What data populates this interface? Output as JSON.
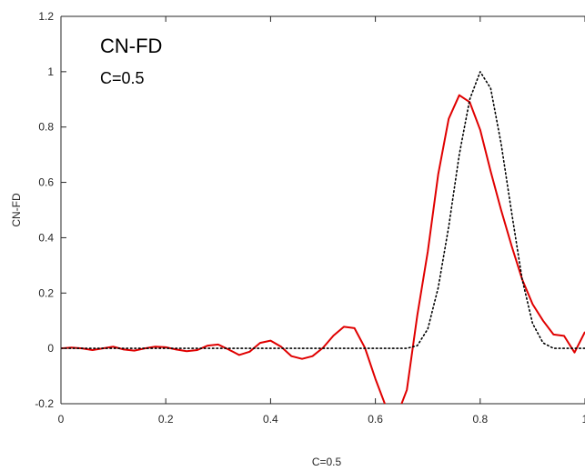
{
  "chart_data": {
    "type": "line",
    "title": "",
    "xlabel": "C=0.5",
    "ylabel": "CN-FD",
    "xlim": [
      0,
      1
    ],
    "ylim": [
      -0.2,
      1.2
    ],
    "xticks": [
      0,
      0.2,
      0.4,
      0.6,
      0.8,
      1
    ],
    "xtick_labels": [
      "0",
      "0.2",
      "0.4",
      "0.6",
      "0.8",
      "1"
    ],
    "yticks": [
      -0.2,
      0,
      0.2,
      0.4,
      0.6,
      0.8,
      1,
      1.2
    ],
    "ytick_labels": [
      "-0.2",
      "0",
      "0.2",
      "0.4",
      "0.6",
      "0.8",
      "1",
      "1.2"
    ],
    "grid": false,
    "annotations": [
      "CN-FD",
      "C=0.5"
    ],
    "series": [
      {
        "style": "solid",
        "color": "#e00000",
        "x": [
          0,
          0.02,
          0.04,
          0.06,
          0.08,
          0.1,
          0.12,
          0.14,
          0.16,
          0.18,
          0.2,
          0.22,
          0.24,
          0.26,
          0.28,
          0.3,
          0.32,
          0.34,
          0.36,
          0.38,
          0.4,
          0.42,
          0.44,
          0.46,
          0.48,
          0.5,
          0.52,
          0.54,
          0.56,
          0.58,
          0.6,
          0.62,
          0.64,
          0.66,
          0.68,
          0.7,
          0.72,
          0.74,
          0.76,
          0.78,
          0.8,
          0.82,
          0.84,
          0.86,
          0.88,
          0.9,
          0.92,
          0.94,
          0.96,
          0.98,
          1.0
        ],
        "y": [
          0,
          0.003,
          0,
          -0.006,
          0,
          0.006,
          -0.004,
          -0.008,
          0,
          0.006,
          0.004,
          -0.004,
          -0.01,
          -0.006,
          0.01,
          0.014,
          -0.004,
          -0.024,
          -0.012,
          0.02,
          0.028,
          0.006,
          -0.028,
          -0.038,
          -0.028,
          0.002,
          0.046,
          0.078,
          0.073,
          0.002,
          -0.11,
          -0.21,
          -0.25,
          -0.15,
          0.12,
          0.35,
          0.63,
          0.83,
          0.915,
          0.89,
          0.79,
          0.64,
          0.5,
          0.37,
          0.25,
          0.16,
          0.1,
          0.05,
          0.045,
          -0.015,
          0.06
        ]
      },
      {
        "style": "dotted",
        "color": "#000000",
        "x": [
          0,
          0.66,
          0.68,
          0.7,
          0.72,
          0.74,
          0.76,
          0.78,
          0.8,
          0.82,
          0.84,
          0.86,
          0.88,
          0.9,
          0.92,
          0.94,
          1.0
        ],
        "y": [
          0,
          0,
          0.01,
          0.07,
          0.22,
          0.44,
          0.7,
          0.9,
          1.0,
          0.94,
          0.74,
          0.49,
          0.25,
          0.09,
          0.02,
          0,
          0
        ]
      }
    ]
  }
}
